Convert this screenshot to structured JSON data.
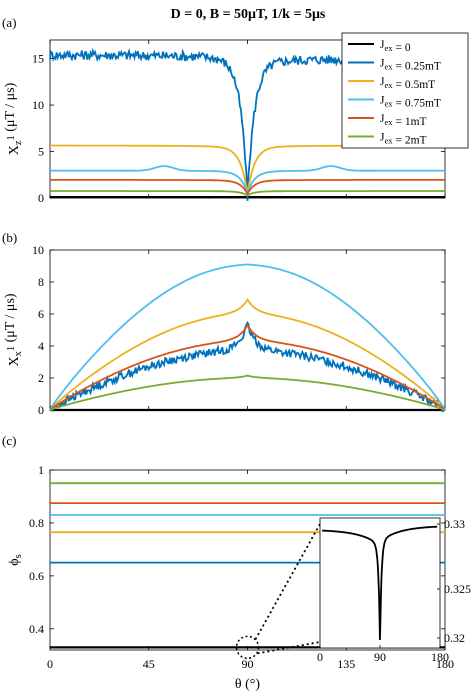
{
  "title": "D = 0, B = 50μT, 1/k = 5μs",
  "legend": {
    "placement": "top-right",
    "entries": [
      {
        "label": "J_ex = 0",
        "color": "#000000"
      },
      {
        "label": "J_ex = 0.25mT",
        "color": "#0072BD"
      },
      {
        "label": "J_ex = 0.5mT",
        "color": "#EDB120"
      },
      {
        "label": "J_ex = 0.75mT",
        "color": "#4DBEEE"
      },
      {
        "label": "J_ex = 1mT",
        "color": "#D95319"
      },
      {
        "label": "J_ex = 2mT",
        "color": "#77AC30"
      }
    ]
  },
  "chart_data": [
    {
      "panel": "(a)",
      "type": "line",
      "ylabel": "X_z^1 (μT / μs)",
      "xlim": [
        0,
        180
      ],
      "ylim": [
        0,
        17
      ],
      "yticks": [
        0,
        5,
        10,
        15
      ],
      "x_tick_labels_shown": false,
      "series": [
        {
          "name": "J_ex = 0",
          "shape": "flat",
          "base": 0.1
        },
        {
          "name": "J_ex = 0.25mT",
          "shape": "a_dip",
          "left": 15.4,
          "right": 15.0,
          "min": 0.5,
          "noise": 0.06
        },
        {
          "name": "J_ex = 0.5mT",
          "shape": "a_dip",
          "left": 5.65,
          "right": 5.65,
          "min": 0.6
        },
        {
          "name": "J_ex = 0.75mT",
          "shape": "a_dip_bumps",
          "left": 2.95,
          "right": 2.95,
          "min": 0.6,
          "bump": 0.5
        },
        {
          "name": "J_ex = 1mT",
          "shape": "a_dip",
          "left": 1.95,
          "right": 1.95,
          "min": 0.5
        },
        {
          "name": "J_ex = 2mT",
          "shape": "a_dip",
          "left": 0.75,
          "right": 0.75,
          "min": 0.3
        }
      ]
    },
    {
      "panel": "(b)",
      "type": "line",
      "ylabel": "X_x^1 (μT / μs)",
      "xlim": [
        0,
        180
      ],
      "ylim": [
        0,
        10
      ],
      "yticks": [
        0,
        2,
        4,
        6,
        8,
        10
      ],
      "x_tick_labels_shown": false,
      "series": [
        {
          "name": "J_ex = 0",
          "shape": "flat",
          "base": 0.0
        },
        {
          "name": "J_ex = 0.25mT",
          "shape": "b_peak",
          "plateau": 3.7,
          "peak": 5.3,
          "noise": 0.05
        },
        {
          "name": "J_ex = 0.5mT",
          "shape": "b_peak",
          "plateau": 6.0,
          "peak": 6.9
        },
        {
          "name": "J_ex = 0.75mT",
          "shape": "b_peak",
          "plateau": 9.05,
          "peak": 9.1
        },
        {
          "name": "J_ex = 1mT",
          "shape": "b_peak",
          "plateau": 4.3,
          "peak": 5.3
        },
        {
          "name": "J_ex = 2mT",
          "shape": "b_peak",
          "plateau": 2.0,
          "peak": 2.15
        }
      ]
    },
    {
      "panel": "(c)",
      "type": "line",
      "xlabel": "θ (°)",
      "ylabel": "ϕ_s",
      "xlim": [
        0,
        180
      ],
      "ylim": [
        0.32,
        1.0
      ],
      "xticks": [
        0,
        45,
        90,
        135,
        180
      ],
      "yticks": [
        0.4,
        0.6,
        0.8,
        1
      ],
      "series": [
        {
          "name": "J_ex = 0",
          "values_const": 0.33
        },
        {
          "name": "J_ex = 0.25mT",
          "values_const": 0.65
        },
        {
          "name": "J_ex = 0.5mT",
          "values_const": 0.765
        },
        {
          "name": "J_ex = 0.75mT",
          "values_const": 0.83
        },
        {
          "name": "J_ex = 1mT",
          "values_const": 0.875
        },
        {
          "name": "J_ex = 2mT",
          "values_const": 0.95
        }
      ],
      "inset": {
        "series": "J_ex = 0",
        "xlim": [
          0,
          180
        ],
        "xticks": [
          0,
          90,
          180
        ],
        "ytick_labels": [
          "0.33",
          "0.325",
          "0.32"
        ],
        "ylim": [
          0.32,
          0.33
        ],
        "left": 0.3291,
        "right": 0.3294,
        "min": 0.3214
      }
    }
  ]
}
